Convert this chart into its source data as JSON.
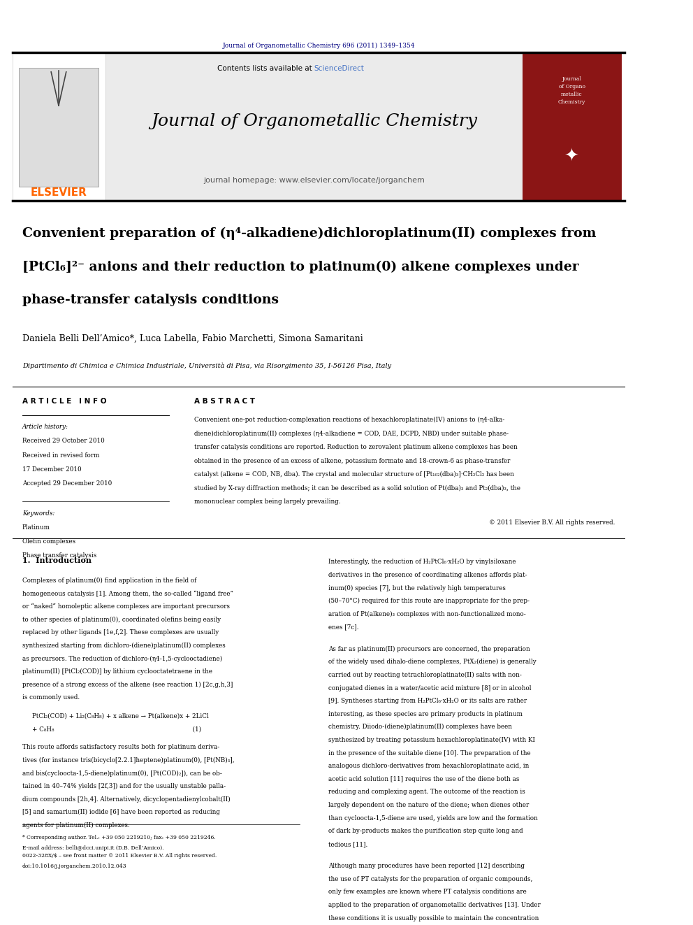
{
  "journal_citation": "Journal of Organometallic Chemistry 696 (2011) 1349–1354",
  "journal_name": "Journal of Organometallic Chemistry",
  "journal_homepage": "journal homepage: www.elsevier.com/locate/jorganchem",
  "contents_line": "Contents lists available at ScienceDirect",
  "elsevier_text": "ELSEVIER",
  "title_line1": "Convenient preparation of (η⁴-alkadiene)dichloroplatinum(II) complexes from",
  "title_line2": "[PtCl₆]²⁻ anions and their reduction to platinum(0) alkene complexes under",
  "title_line3": "phase-transfer catalysis conditions",
  "authors": "Daniela Belli Dell’Amico*, Luca Labella, Fabio Marchetti, Simona Samaritani",
  "affiliation": "Dipartimento di Chimica e Chimica Industriale, Università di Pisa, via Risorgimento 35, I-56126 Pisa, Italy",
  "article_info_header": "A R T I C L E   I N F O",
  "abstract_header": "A B S T R A C T",
  "article_history_label": "Article history:",
  "received_label": "Received 29 October 2010",
  "received_revised": "Received in revised form",
  "received_revised_date": "17 December 2010",
  "accepted_label": "Accepted 29 December 2010",
  "keywords_label": "Keywords:",
  "kw1": "Platinum",
  "kw2": "Olefin complexes",
  "kw3": "Phase transfer catalysis",
  "abstract_text": "Convenient one-pot reduction-complexation reactions of hexachloroplatinate(IV) anions to (η4-alka-\ndiene)dichloroplatinum(II) complexes (η4-alkadiene = COD, DAE, DCPD, NBD) under suitable phase-\ntransfer catalysis conditions are reported. Reduction to zerovalent platinum alkene complexes has been\nobtained in the presence of an excess of alkene, potassium formate and 18-crown-6 as phase-transfer\ncatalyst (alkene = COD, NB, dba). The crystal and molecular structure of [Pt₁₀₂(dba)₃]·CH₂Cl₂ has been\nstudied by X-ray diffraction methods; it can be described as a solid solution of Pt(dba)₃ and Pt₂(dba)₃, the\nmononuclear complex being largely prevailing.",
  "copyright": "© 2011 Elsevier B.V. All rights reserved.",
  "intro_header": "1.  Introduction",
  "intro_text1": "Complexes of platinum(0) find application in the field of\nhomogeneous catalysis [1]. Among them, the so-called “ligand free”\nor “naked” homoleptic alkene complexes are important precursors\nto other species of platinum(0), coordinated olefins being easily\nreplaced by other ligands [1e,f,2]. These complexes are usually\nsynthesized starting from dichloro-(diene)platinum(II) complexes\nas precursors. The reduction of dichloro-(η4-1,5-cyclooctadiene)\nplatinum(II) [PtCl₂(COD)] by lithium cyclooctatetraene in the\npresence of a strong excess of the alkene (see reaction 1) [2c,g,h,3]\nis commonly used.",
  "reaction_line1": "PtCl₂(COD) + Li₂(C₈H₈) + x alkene → Pt(alkene)x + 2LiCl",
  "reaction_line2": "+ C₈H₈                                                                        (1)",
  "intro_text2": "This route affords satisfactory results both for platinum deriva-\ntives (for instance tris(bicyclo[2.2.1]heptene)platinum(0), [Pt(NB)₃],\nand bis(cycloocta-1,5-diene)platinum(0), [Pt(COD)₂]), can be ob-\ntained in 40–74% yields [2f,3]) and for the usually unstable palla-\ndium compounds [2h,4]. Alternatively, dicyclopentadienylcobalt(II)\n[5] and samarium(II) iodide [6] have been reported as reducing\nagents for platinum(II) complexes.",
  "right_col_text1": "Interestingly, the reduction of H₂PtCl₆·xH₂O by vinylsiloxane\nderivatives in the presence of coordinating alkenes affords plat-\ninum(0) species [7], but the relatively high temperatures\n(50–70°C) required for this route are inappropriate for the prep-\naration of Pt(alkene)₃ complexes with non-functionalized mono-\nenes [7c].",
  "right_col_text2": "As far as platinum(II) precursors are concerned, the preparation\nof the widely used dihalo-diene complexes, PtX₂(diene) is generally\ncarried out by reacting tetrachloroplatinate(II) salts with non-\nconjugated dienes in a water/acetic acid mixture [8] or in alcohol\n[9]. Syntheses starting from H₂PtCl₆·xH₂O or its salts are rather\ninteresting, as these species are primary products in platinum\nchemistry. Diiodo-(diene)platinum(II) complexes have been\nsynthesized by treating potassium hexachloroplatinate(IV) with KI\nin the presence of the suitable diene [10]. The preparation of the\nanalogous dichloro-derivatives from hexachloroplatinate acid, in\nacetic acid solution [11] requires the use of the diene both as\nreducing and complexing agent. The outcome of the reaction is\nlargely dependent on the nature of the diene; when dienes other\nthan cycloocta-1,5-diene are used, yields are low and the formation\nof dark by-products makes the purification step quite long and\ntedious [11].",
  "right_col_text3": "Although many procedures have been reported [12] describing\nthe use of PT catalysts for the preparation of organic compounds,\nonly few examples are known where PT catalysis conditions are\napplied to the preparation of organometallic derivatives [13]. Under\nthese conditions it is usually possible to maintain the concentration\nof the reagents in the organic phase low enough to be tolerated by",
  "footnote1": "* Corresponding author. Tel.: +39 050 2219210; fax: +39 050 2219246.",
  "footnote2": "E-mail address: belli@dcci.unipi.it (D.B. Dell’Amico).",
  "footer_line1": "0022-328X/$ – see front matter © 2011 Elsevier B.V. All rights reserved.",
  "footer_line2": "doi:10.1016/j.jorganchem.2010.12.043",
  "dark_blue": "#000080",
  "orange_color": "#FF6600",
  "sciencedirect_color": "#4472C4",
  "header_bg": "#E8E8E8",
  "dark_red_journal": "#8B1515",
  "body_text_color": "#000000",
  "fig_width": 9.92,
  "fig_height": 13.23
}
